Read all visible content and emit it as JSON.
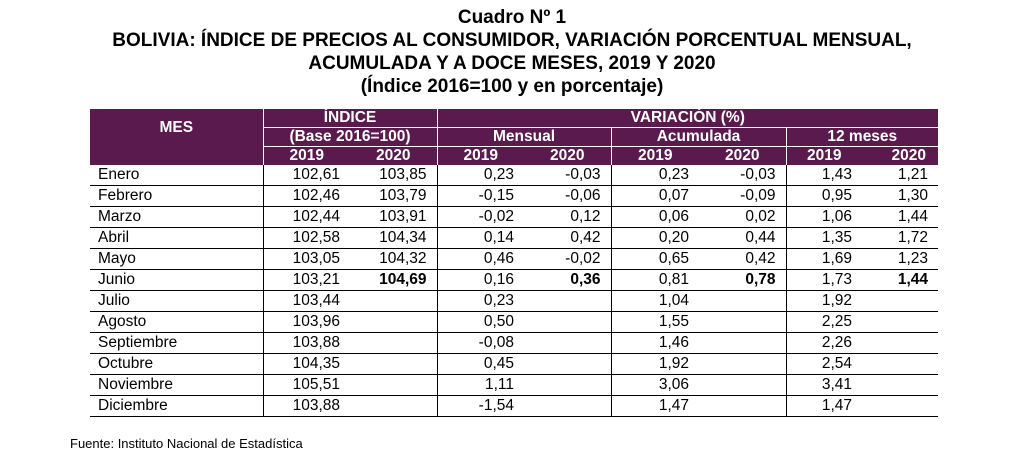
{
  "title": {
    "line1": "Cuadro Nº 1",
    "line2": "BOLIVIA: ÍNDICE DE PRECIOS AL CONSUMIDOR, VARIACIÓN PORCENTUAL MENSUAL,",
    "line3": "ACUMULADA Y A DOCE MESES, 2019 Y 2020",
    "line4": "(Índice 2016=100 y en porcentaje)"
  },
  "header": {
    "mes": "MES",
    "indice": "ÍNDICE",
    "base": "(Base 2016=100)",
    "variacion": "VARIACIÓN (%)",
    "mensual": "Mensual",
    "acumulada": "Acumulada",
    "doce_meses": "12 meses",
    "years": [
      "2019",
      "2020",
      "2019",
      "2020",
      "2019",
      "2020",
      "2019",
      "2020"
    ]
  },
  "rows": [
    {
      "mes": "Enero",
      "i2019": "102,61",
      "i2020": "103,85",
      "m2019": "0,23",
      "m2020": "-0,03",
      "a2019": "0,23",
      "a2020": "-0,03",
      "d2019": "1,43",
      "d2020": "1,21"
    },
    {
      "mes": "Febrero",
      "i2019": "102,46",
      "i2020": "103,79",
      "m2019": "-0,15",
      "m2020": "-0,06",
      "a2019": "0,07",
      "a2020": "-0,09",
      "d2019": "0,95",
      "d2020": "1,30"
    },
    {
      "mes": "Marzo",
      "i2019": "102,44",
      "i2020": "103,91",
      "m2019": "-0,02",
      "m2020": "0,12",
      "a2019": "0,06",
      "a2020": "0,02",
      "d2019": "1,06",
      "d2020": "1,44"
    },
    {
      "mes": "Abril",
      "i2019": "102,58",
      "i2020": "104,34",
      "m2019": "0,14",
      "m2020": "0,42",
      "a2019": "0,20",
      "a2020": "0,44",
      "d2019": "1,35",
      "d2020": "1,72"
    },
    {
      "mes": "Mayo",
      "i2019": "103,05",
      "i2020": "104,32",
      "m2019": "0,46",
      "m2020": "-0,02",
      "a2019": "0,65",
      "a2020": "0,42",
      "d2019": "1,69",
      "d2020": "1,23"
    },
    {
      "mes": "Junio",
      "i2019": "103,21",
      "i2020": "104,69",
      "m2019": "0,16",
      "m2020": "0,36",
      "a2019": "0,81",
      "a2020": "0,78",
      "d2019": "1,73",
      "d2020": "1,44"
    },
    {
      "mes": "Julio",
      "i2019": "103,44",
      "i2020": "",
      "m2019": "0,23",
      "m2020": "",
      "a2019": "1,04",
      "a2020": "",
      "d2019": "1,92",
      "d2020": ""
    },
    {
      "mes": "Agosto",
      "i2019": "103,96",
      "i2020": "",
      "m2019": "0,50",
      "m2020": "",
      "a2019": "1,55",
      "a2020": "",
      "d2019": "2,25",
      "d2020": ""
    },
    {
      "mes": "Septiembre",
      "i2019": "103,88",
      "i2020": "",
      "m2019": "-0,08",
      "m2020": "",
      "a2019": "1,46",
      "a2020": "",
      "d2019": "2,26",
      "d2020": ""
    },
    {
      "mes": "Octubre",
      "i2019": "104,35",
      "i2020": "",
      "m2019": "0,45",
      "m2020": "",
      "a2019": "1,92",
      "a2020": "",
      "d2019": "2,54",
      "d2020": ""
    },
    {
      "mes": "Noviembre",
      "i2019": "105,51",
      "i2020": "",
      "m2019": "1,11",
      "m2020": "",
      "a2019": "3,06",
      "a2020": "",
      "d2019": "3,41",
      "d2020": ""
    },
    {
      "mes": "Diciembre",
      "i2019": "103,88",
      "i2020": "",
      "m2019": "-1,54",
      "m2020": "",
      "a2019": "1,47",
      "a2020": "",
      "d2019": "1,47",
      "d2020": ""
    }
  ],
  "bold_row": "Junio",
  "source": "Fuente: Instituto Nacional de Estadística",
  "colors": {
    "header_bg": "#5a1a4e",
    "header_text": "#ffffff"
  }
}
